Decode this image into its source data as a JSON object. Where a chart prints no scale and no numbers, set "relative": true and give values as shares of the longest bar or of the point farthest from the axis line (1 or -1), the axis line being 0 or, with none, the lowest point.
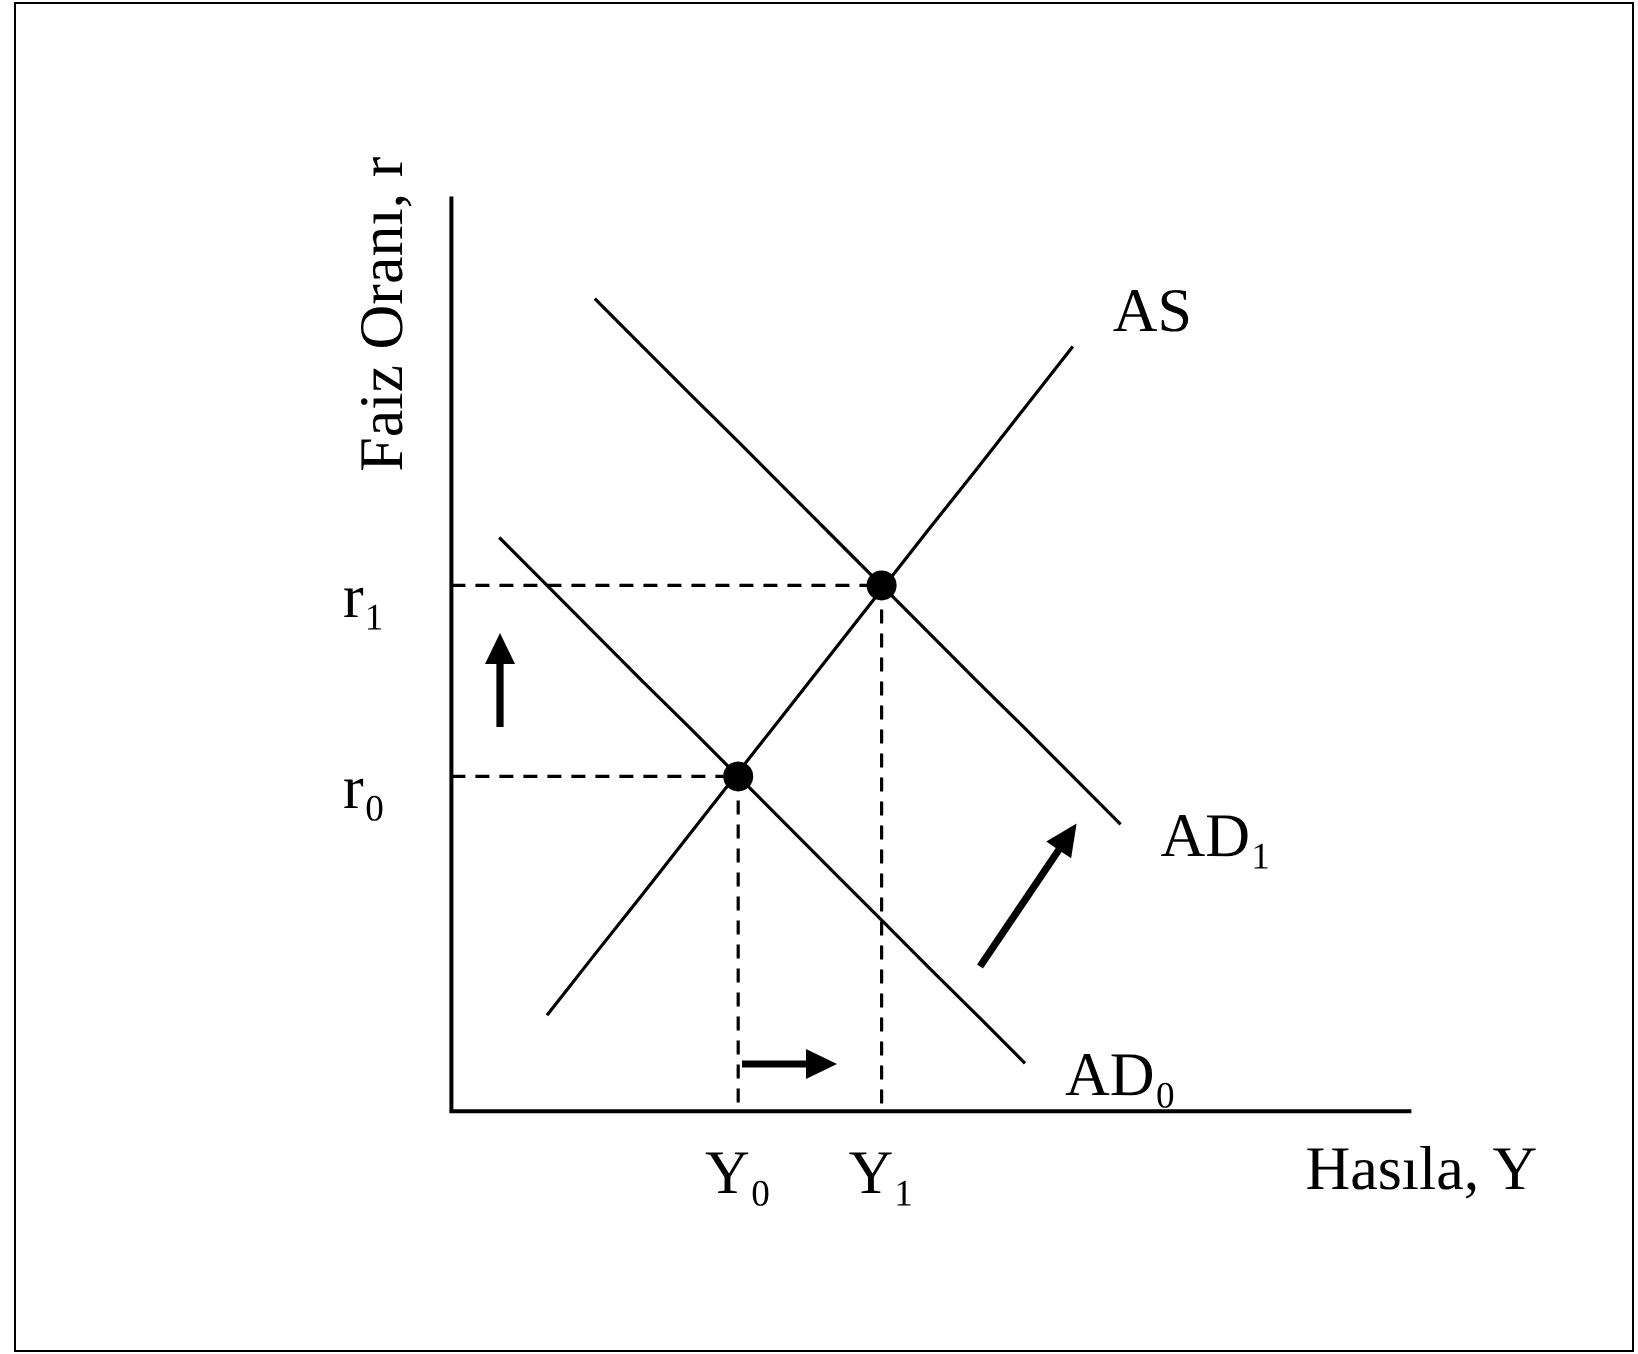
{
  "chart_data": {
    "type": "line",
    "relative": true,
    "xlabel": "Hasıla, Y",
    "ylabel": "Faiz Oranı, r",
    "marker": "none",
    "line_style": "solid",
    "categories": [
      null,
      null,
      null,
      null,
      null,
      null,
      "Y₀",
      null,
      null,
      "Y₁",
      null,
      null,
      null,
      null,
      null,
      null,
      null,
      null,
      null,
      null,
      null
    ],
    "series": [
      {
        "name": "AS",
        "color": "#000000",
        "values": [
          null,
          null,
          0.118,
          0.193,
          0.267,
          0.342,
          0.417,
          0.492,
          0.567,
          0.642,
          0.717,
          0.791,
          0.866,
          0.941,
          null,
          null,
          null,
          null,
          null,
          null,
          null
        ]
      },
      {
        "name": "AD₀",
        "color": "#000000",
        "values": [
          null,
          0.706,
          0.647,
          0.588,
          0.529,
          0.471,
          0.412,
          0.353,
          0.294,
          0.235,
          0.176,
          0.118,
          0.059,
          null,
          null,
          null,
          null,
          null,
          null,
          null,
          null
        ]
      },
      {
        "name": "AD₁",
        "color": "#000000",
        "values": [
          null,
          null,
          null,
          1,
          0.941,
          0.882,
          0.824,
          0.765,
          0.706,
          0.647,
          0.588,
          0.529,
          0.471,
          0.412,
          0.353,
          null,
          null,
          null,
          null,
          null,
          null
        ]
      },
      {
        "color": "#000000",
        "line_style": "dashed",
        "x": [
          "Y₀",
          "Y₀"
        ],
        "values": [
          0.412,
          0
        ]
      },
      {
        "color": "#000000",
        "line_style": "dashed",
        "x": [
          "Y₁",
          "Y₁"
        ],
        "values": [
          0.647,
          0
        ]
      },
      {
        "type": "scatter",
        "color": "#000000",
        "marker": "circle",
        "x": [
          "Y₀",
          "Y₁"
        ],
        "values": [
          0.412,
          0.647
        ]
      }
    ],
    "ref_lines": [
      {
        "axis": "y",
        "value": 0.412,
        "label": "r₀",
        "color": "#000000",
        "line_style": "dashed"
      },
      {
        "axis": "y",
        "value": 0.647,
        "label": "r₁",
        "color": "#000000",
        "line_style": "dashed"
      }
    ]
  }
}
